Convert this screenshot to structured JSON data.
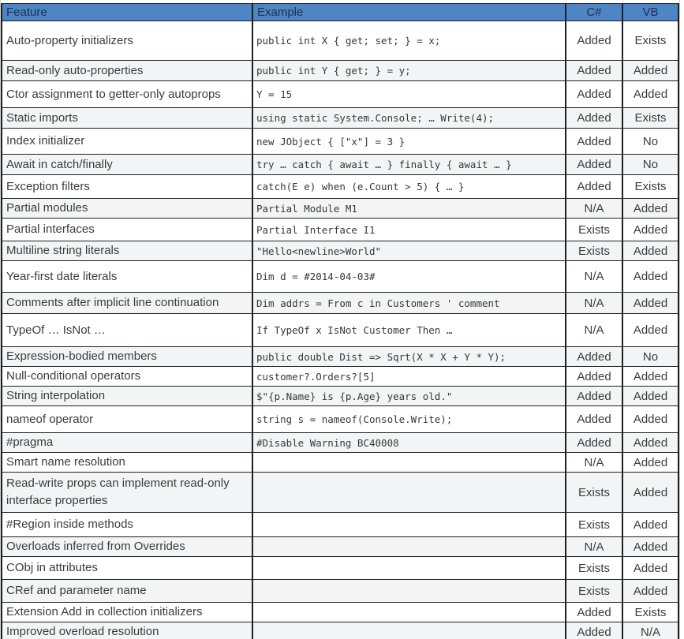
{
  "colors": {
    "header_bg": "#4e85c5",
    "header_text": "#1e2f50",
    "border": "#1f1f1f",
    "stripe": "#f3f4f6",
    "text": "#3c3c3c",
    "code_text": "#383838",
    "faint_gridline": "#d6d6d6"
  },
  "table": {
    "columns": [
      {
        "id": "feature",
        "label": "Feature"
      },
      {
        "id": "example",
        "label": "Example"
      },
      {
        "id": "csharp",
        "label": "C#"
      },
      {
        "id": "vb",
        "label": "VB"
      }
    ],
    "rows": [
      {
        "feature": "Auto-property initializers",
        "example": "public int X { get; set; } = x;",
        "csharp": "Added",
        "vb": "Exists"
      },
      {
        "feature": "Read-only auto-properties",
        "example": "public int Y { get; } = y;",
        "csharp": "Added",
        "vb": "Added"
      },
      {
        "feature": "Ctor assignment to getter-only autoprops",
        "example": "Y = 15",
        "csharp": "Added",
        "vb": "Added"
      },
      {
        "feature": "Static imports",
        "example": "using static System.Console; … Write(4);",
        "csharp": "Added",
        "vb": "Exists"
      },
      {
        "feature": "Index initializer",
        "example": "new JObject { [\"x\"] = 3 }",
        "csharp": "Added",
        "vb": "No"
      },
      {
        "feature": "Await in catch/finally",
        "example": "try … catch { await … } finally { await … }",
        "csharp": "Added",
        "vb": "No"
      },
      {
        "feature": "Exception filters",
        "example": "catch(E e) when (e.Count > 5) { … }",
        "csharp": "Added",
        "vb": "Exists"
      },
      {
        "feature": "Partial modules",
        "example": "Partial Module M1",
        "csharp": "N/A",
        "vb": "Added"
      },
      {
        "feature": "Partial interfaces",
        "example": "Partial Interface I1",
        "csharp": "Exists",
        "vb": "Added"
      },
      {
        "feature": "Multiline string literals",
        "example": "\"Hello<newline>World\"",
        "csharp": "Exists",
        "vb": "Added"
      },
      {
        "feature": "Year-first date literals",
        "example": "Dim d = #2014-04-03#",
        "csharp": "N/A",
        "vb": "Added"
      },
      {
        "feature": "Comments after implicit line continuation",
        "example": "Dim addrs = From c in Customers ' comment",
        "csharp": "N/A",
        "vb": "Added"
      },
      {
        "feature": "TypeOf … IsNot …",
        "example": "If TypeOf x IsNot Customer Then …",
        "csharp": "N/A",
        "vb": "Added"
      },
      {
        "feature": "Expression-bodied members",
        "example": "public double Dist => Sqrt(X * X + Y * Y);",
        "csharp": "Added",
        "vb": "No"
      },
      {
        "feature": "Null-conditional operators",
        "example": "customer?.Orders?[5]",
        "csharp": "Added",
        "vb": "Added"
      },
      {
        "feature": "String interpolation",
        "example": "$\"{p.Name} is {p.Age} years old.\"",
        "csharp": "Added",
        "vb": "Added"
      },
      {
        "feature": "nameof operator",
        "example": "string s = nameof(Console.Write);",
        "csharp": "Added",
        "vb": "Added"
      },
      {
        "feature": "#pragma",
        "example": "#Disable Warning BC40008",
        "csharp": "Added",
        "vb": "Added"
      },
      {
        "feature": "Smart name resolution",
        "example": "",
        "csharp": "N/A",
        "vb": "Added"
      },
      {
        "feature": "Read-write props can implement read-only interface properties",
        "example": "",
        "csharp": "Exists",
        "vb": "Added"
      },
      {
        "feature": "#Region inside methods",
        "example": "",
        "csharp": "Exists",
        "vb": "Added"
      },
      {
        "feature": "Overloads inferred from Overrides",
        "example": "",
        "csharp": "N/A",
        "vb": "Added"
      },
      {
        "feature": "CObj in attributes",
        "example": "",
        "csharp": "Exists",
        "vb": "Added"
      },
      {
        "feature": "CRef and parameter name",
        "example": "",
        "csharp": "Exists",
        "vb": "Added"
      },
      {
        "feature": "Extension Add in collection initializers",
        "example": "",
        "csharp": "Added",
        "vb": "Exists"
      },
      {
        "feature": "Improved overload resolution",
        "example": "",
        "csharp": "Added",
        "vb": "N/A"
      }
    ]
  }
}
